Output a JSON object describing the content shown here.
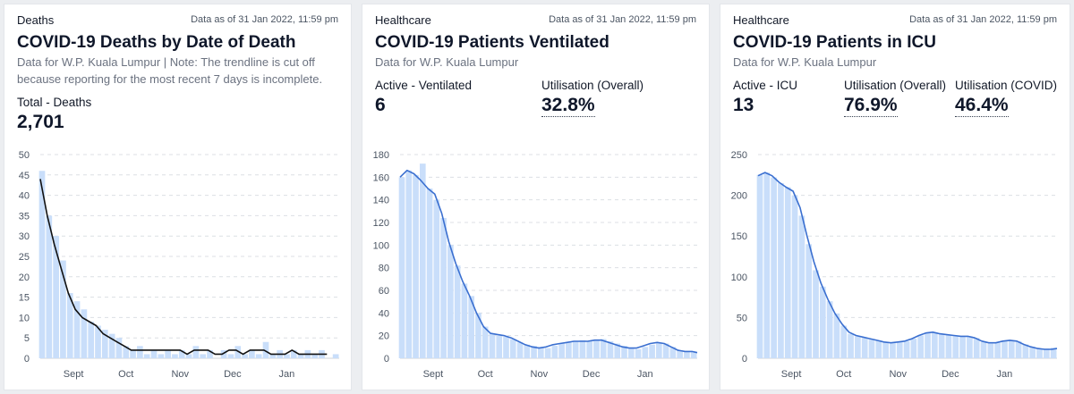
{
  "cards": [
    {
      "category": "Deaths",
      "as_of": "Data as of 31 Jan 2022, 11:59 pm",
      "title": "COVID-19 Deaths by Date of Death",
      "subtitle": "Data for W.P. Kuala Lumpur | Note: The trendline is cut off because reporting for the most recent 7 days is incomplete.",
      "stats": [
        {
          "label": "Total - Deaths",
          "value": "2,701",
          "dotted": false
        }
      ]
    },
    {
      "category": "Healthcare",
      "as_of": "Data as of 31 Jan 2022, 11:59 pm",
      "title": "COVID-19 Patients Ventilated",
      "subtitle": "Data for W.P. Kuala Lumpur",
      "stats": [
        {
          "label": "Active - Ventilated",
          "value": "6",
          "dotted": false
        },
        {
          "label": "Utilisation (Overall)",
          "value": "32.8%",
          "dotted": true
        }
      ]
    },
    {
      "category": "Healthcare",
      "as_of": "Data as of 31 Jan 2022, 11:59 pm",
      "title": "COVID-19 Patients in ICU",
      "subtitle": "Data for W.P. Kuala Lumpur",
      "stats": [
        {
          "label": "Active - ICU",
          "value": "13",
          "dotted": false
        },
        {
          "label": "Utilisation (Overall)",
          "value": "76.9%",
          "dotted": true
        },
        {
          "label": "Utilisation (COVID)",
          "value": "46.4%",
          "dotted": true
        }
      ]
    }
  ],
  "chart_data": [
    {
      "type": "bar",
      "title": "COVID-19 Deaths by Date of Death",
      "x_tick_labels": [
        "Sept",
        "Oct",
        "Nov",
        "Dec",
        "Jan"
      ],
      "x_tick_dates": [
        "2021-09-01",
        "2021-10-01",
        "2021-11-01",
        "2021-12-01",
        "2022-01-01"
      ],
      "x_range": [
        "2021-08-13",
        "2022-01-31"
      ],
      "y_ticks": [
        0,
        5,
        10,
        15,
        20,
        25,
        30,
        35,
        40,
        45,
        50
      ],
      "ylim": [
        0,
        50
      ],
      "bar_color": "#c9defa",
      "trend_color": "#111111",
      "grid": true,
      "series": [
        {
          "kind": "bar",
          "dates": [
            "2021-08-13",
            "2021-08-17",
            "2021-08-21",
            "2021-08-25",
            "2021-08-29",
            "2021-09-02",
            "2021-09-06",
            "2021-09-10",
            "2021-09-14",
            "2021-09-18",
            "2021-09-22",
            "2021-09-26",
            "2021-09-30",
            "2021-10-04",
            "2021-10-08",
            "2021-10-12",
            "2021-10-16",
            "2021-10-20",
            "2021-10-24",
            "2021-10-28",
            "2021-11-01",
            "2021-11-05",
            "2021-11-09",
            "2021-11-13",
            "2021-11-17",
            "2021-11-21",
            "2021-11-25",
            "2021-11-29",
            "2021-12-03",
            "2021-12-07",
            "2021-12-11",
            "2021-12-15",
            "2021-12-19",
            "2021-12-23",
            "2021-12-27",
            "2021-12-31",
            "2022-01-04",
            "2022-01-08",
            "2022-01-12",
            "2022-01-16",
            "2022-01-20",
            "2022-01-24",
            "2022-01-28"
          ],
          "values": [
            46,
            35,
            30,
            24,
            16,
            14,
            12,
            9,
            8,
            7,
            6,
            5,
            3,
            2,
            3,
            1,
            2,
            1,
            2,
            1,
            2,
            1,
            3,
            1,
            2,
            0,
            2,
            1,
            3,
            1,
            2,
            1,
            4,
            1,
            2,
            1,
            2,
            1,
            2,
            1,
            2,
            0,
            1
          ]
        },
        {
          "kind": "trend",
          "dates": [
            "2021-08-13",
            "2021-08-17",
            "2021-08-21",
            "2021-08-25",
            "2021-08-29",
            "2021-09-02",
            "2021-09-06",
            "2021-09-10",
            "2021-09-14",
            "2021-09-18",
            "2021-09-22",
            "2021-09-26",
            "2021-09-30",
            "2021-10-04",
            "2021-10-08",
            "2021-10-12",
            "2021-10-16",
            "2021-10-20",
            "2021-10-24",
            "2021-10-28",
            "2021-11-01",
            "2021-11-05",
            "2021-11-09",
            "2021-11-13",
            "2021-11-17",
            "2021-11-21",
            "2021-11-25",
            "2021-11-29",
            "2021-12-03",
            "2021-12-07",
            "2021-12-11",
            "2021-12-15",
            "2021-12-19",
            "2021-12-23",
            "2021-12-27",
            "2021-12-31",
            "2022-01-04",
            "2022-01-08",
            "2022-01-12",
            "2022-01-16",
            "2022-01-20",
            "2022-01-24"
          ],
          "values": [
            44,
            35,
            28,
            22,
            16,
            12,
            10,
            9,
            8,
            6,
            5,
            4,
            3,
            2,
            2,
            2,
            2,
            2,
            2,
            2,
            2,
            1,
            2,
            2,
            2,
            1,
            1,
            2,
            2,
            1,
            2,
            2,
            2,
            1,
            1,
            1,
            2,
            1,
            1,
            1,
            1,
            1
          ]
        }
      ]
    },
    {
      "type": "bar",
      "title": "COVID-19 Patients Ventilated",
      "x_tick_labels": [
        "Sept",
        "Oct",
        "Nov",
        "Dec",
        "Jan"
      ],
      "x_tick_dates": [
        "2021-09-01",
        "2021-10-01",
        "2021-11-01",
        "2021-12-01",
        "2022-01-01"
      ],
      "x_range": [
        "2021-08-13",
        "2022-01-31"
      ],
      "y_ticks": [
        0,
        20,
        40,
        60,
        80,
        100,
        120,
        140,
        160,
        180
      ],
      "ylim": [
        0,
        180
      ],
      "bar_color": "#c9defa",
      "trend_color": "#3a6fd0",
      "grid": true,
      "series": [
        {
          "kind": "bar",
          "dates": [
            "2021-08-13",
            "2021-08-17",
            "2021-08-21",
            "2021-08-25",
            "2021-08-29",
            "2021-09-02",
            "2021-09-06",
            "2021-09-10",
            "2021-09-14",
            "2021-09-18",
            "2021-09-22",
            "2021-09-26",
            "2021-09-30",
            "2021-10-04",
            "2021-10-08",
            "2021-10-12",
            "2021-10-16",
            "2021-10-20",
            "2021-10-24",
            "2021-10-28",
            "2021-11-01",
            "2021-11-05",
            "2021-11-09",
            "2021-11-13",
            "2021-11-17",
            "2021-11-21",
            "2021-11-25",
            "2021-11-29",
            "2021-12-03",
            "2021-12-07",
            "2021-12-11",
            "2021-12-15",
            "2021-12-19",
            "2021-12-23",
            "2021-12-27",
            "2021-12-31",
            "2022-01-04",
            "2022-01-08",
            "2022-01-12",
            "2022-01-16",
            "2022-01-20",
            "2022-01-24",
            "2022-01-28"
          ],
          "values": [
            160,
            166,
            162,
            172,
            150,
            140,
            124,
            100,
            82,
            66,
            55,
            40,
            28,
            22,
            20,
            19,
            17,
            14,
            12,
            11,
            10,
            9,
            11,
            13,
            14,
            15,
            16,
            15,
            16,
            17,
            15,
            13,
            11,
            9,
            8,
            10,
            12,
            14,
            13,
            10,
            7,
            6,
            6
          ]
        },
        {
          "kind": "trend",
          "dates": [
            "2021-08-13",
            "2021-08-17",
            "2021-08-21",
            "2021-08-25",
            "2021-08-29",
            "2021-09-02",
            "2021-09-06",
            "2021-09-10",
            "2021-09-14",
            "2021-09-18",
            "2021-09-22",
            "2021-09-26",
            "2021-09-30",
            "2021-10-04",
            "2021-10-08",
            "2021-10-12",
            "2021-10-16",
            "2021-10-20",
            "2021-10-24",
            "2021-10-28",
            "2021-11-01",
            "2021-11-05",
            "2021-11-09",
            "2021-11-13",
            "2021-11-17",
            "2021-11-21",
            "2021-11-25",
            "2021-11-29",
            "2021-12-03",
            "2021-12-07",
            "2021-12-11",
            "2021-12-15",
            "2021-12-19",
            "2021-12-23",
            "2021-12-27",
            "2021-12-31",
            "2022-01-04",
            "2022-01-08",
            "2022-01-12",
            "2022-01-16",
            "2022-01-20",
            "2022-01-24",
            "2022-01-28",
            "2022-01-31"
          ],
          "values": [
            160,
            166,
            163,
            157,
            150,
            145,
            128,
            103,
            84,
            68,
            55,
            40,
            28,
            22,
            21,
            20,
            18,
            15,
            12,
            10,
            9,
            10,
            12,
            13,
            14,
            15,
            15,
            15,
            16,
            16,
            14,
            12,
            10,
            9,
            9,
            11,
            13,
            14,
            13,
            10,
            7,
            6,
            6,
            5
          ]
        }
      ]
    },
    {
      "type": "bar",
      "title": "COVID-19 Patients in ICU",
      "x_tick_labels": [
        "Sept",
        "Oct",
        "Nov",
        "Dec",
        "Jan"
      ],
      "x_tick_dates": [
        "2021-09-01",
        "2021-10-01",
        "2021-11-01",
        "2021-12-01",
        "2022-01-01"
      ],
      "x_range": [
        "2021-08-13",
        "2022-01-31"
      ],
      "y_ticks": [
        0,
        50,
        100,
        150,
        200,
        250
      ],
      "ylim": [
        0,
        250
      ],
      "bar_color": "#c9defa",
      "trend_color": "#3a6fd0",
      "grid": true,
      "series": [
        {
          "kind": "bar",
          "dates": [
            "2021-08-13",
            "2021-08-17",
            "2021-08-21",
            "2021-08-25",
            "2021-08-29",
            "2021-09-02",
            "2021-09-06",
            "2021-09-10",
            "2021-09-14",
            "2021-09-18",
            "2021-09-22",
            "2021-09-26",
            "2021-09-30",
            "2021-10-04",
            "2021-10-08",
            "2021-10-12",
            "2021-10-16",
            "2021-10-20",
            "2021-10-24",
            "2021-10-28",
            "2021-11-01",
            "2021-11-05",
            "2021-11-09",
            "2021-11-13",
            "2021-11-17",
            "2021-11-21",
            "2021-11-25",
            "2021-11-29",
            "2021-12-03",
            "2021-12-07",
            "2021-12-11",
            "2021-12-15",
            "2021-12-19",
            "2021-12-23",
            "2021-12-27",
            "2021-12-31",
            "2022-01-04",
            "2022-01-08",
            "2022-01-12",
            "2022-01-16",
            "2022-01-20",
            "2022-01-24",
            "2022-01-28"
          ],
          "values": [
            225,
            228,
            222,
            215,
            210,
            200,
            175,
            140,
            108,
            88,
            70,
            55,
            40,
            30,
            27,
            25,
            23,
            22,
            20,
            19,
            20,
            21,
            24,
            28,
            31,
            32,
            30,
            29,
            28,
            27,
            27,
            25,
            20,
            18,
            19,
            21,
            22,
            21,
            17,
            14,
            12,
            12,
            13
          ]
        },
        {
          "kind": "trend",
          "dates": [
            "2021-08-13",
            "2021-08-17",
            "2021-08-21",
            "2021-08-25",
            "2021-08-29",
            "2021-09-02",
            "2021-09-06",
            "2021-09-10",
            "2021-09-14",
            "2021-09-18",
            "2021-09-22",
            "2021-09-26",
            "2021-09-30",
            "2021-10-04",
            "2021-10-08",
            "2021-10-12",
            "2021-10-16",
            "2021-10-20",
            "2021-10-24",
            "2021-10-28",
            "2021-11-01",
            "2021-11-05",
            "2021-11-09",
            "2021-11-13",
            "2021-11-17",
            "2021-11-21",
            "2021-11-25",
            "2021-11-29",
            "2021-12-03",
            "2021-12-07",
            "2021-12-11",
            "2021-12-15",
            "2021-12-19",
            "2021-12-23",
            "2021-12-27",
            "2021-12-31",
            "2022-01-04",
            "2022-01-08",
            "2022-01-12",
            "2022-01-16",
            "2022-01-20",
            "2022-01-24",
            "2022-01-28",
            "2022-01-31"
          ],
          "values": [
            224,
            228,
            224,
            216,
            210,
            205,
            185,
            150,
            118,
            92,
            72,
            55,
            42,
            32,
            28,
            26,
            24,
            22,
            20,
            19,
            20,
            21,
            24,
            28,
            31,
            32,
            30,
            29,
            28,
            27,
            27,
            25,
            21,
            19,
            19,
            21,
            22,
            21,
            17,
            14,
            12,
            11,
            11,
            12
          ]
        }
      ]
    }
  ]
}
